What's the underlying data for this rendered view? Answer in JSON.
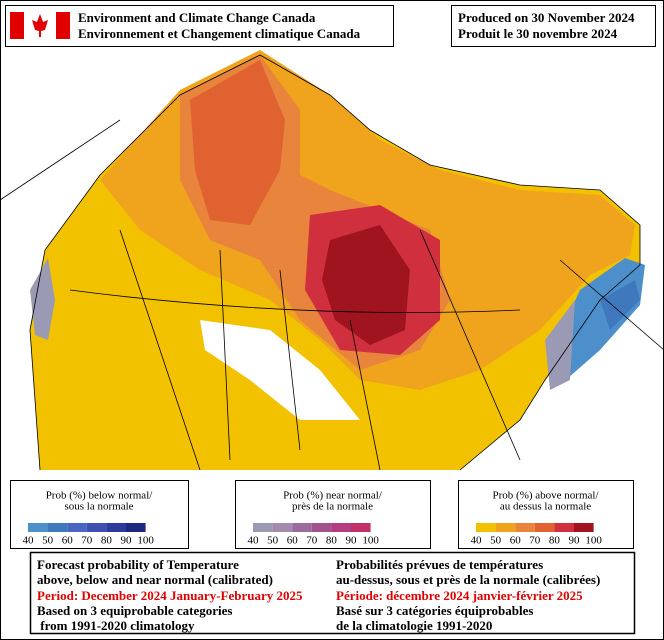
{
  "header": {
    "agency_en": "Environment and Climate Change Canada",
    "agency_fr": "Environnement et Changement climatique Canada",
    "produced_en": "Produced on 30 November 2024",
    "produced_fr": "Produit le 30 novembre 2024"
  },
  "legends": [
    {
      "title_en": "Prob (%) below normal/",
      "title_fr": "sous la normale",
      "colors": [
        "#4d8fca",
        "#3f78bd",
        "#4a66c2",
        "#3e50b2",
        "#2d3c9c",
        "#1d2a80"
      ],
      "labels": [
        40,
        50,
        60,
        70,
        80,
        90,
        100
      ]
    },
    {
      "title_en": "Prob (%) near normal/",
      "title_fr": "près de la normale",
      "colors": [
        "#9a9ab4",
        "#a48aac",
        "#9c6c9c",
        "#a4528e",
        "#b23e80",
        "#c2306a"
      ],
      "labels": [
        40,
        50,
        60,
        70,
        80,
        90,
        100
      ]
    },
    {
      "title_en": "Prob (%) above normal/",
      "title_fr": "au dessus la normale",
      "colors": [
        "#f2c200",
        "#f0a41e",
        "#e8843c",
        "#e06230",
        "#d0303e",
        "#a01420"
      ],
      "labels": [
        40,
        50,
        60,
        70,
        80,
        90,
        100
      ]
    }
  ],
  "footer": {
    "left": [
      "Forecast probability of Temperature",
      "above, below and near normal (calibrated)",
      "Period: December 2024 January-February 2025",
      "Based on 3 equiprobable categories",
      " from 1991-2020 climatology"
    ],
    "right": [
      "Probabilités prévues de températures",
      "au-dessus, sous et près de la normale (calibrées)",
      "Période: décembre 2024 janvier-février 2025",
      "Basé sur 3 catégories équiprobables",
      "de la climatologie 1991-2020"
    ]
  }
}
